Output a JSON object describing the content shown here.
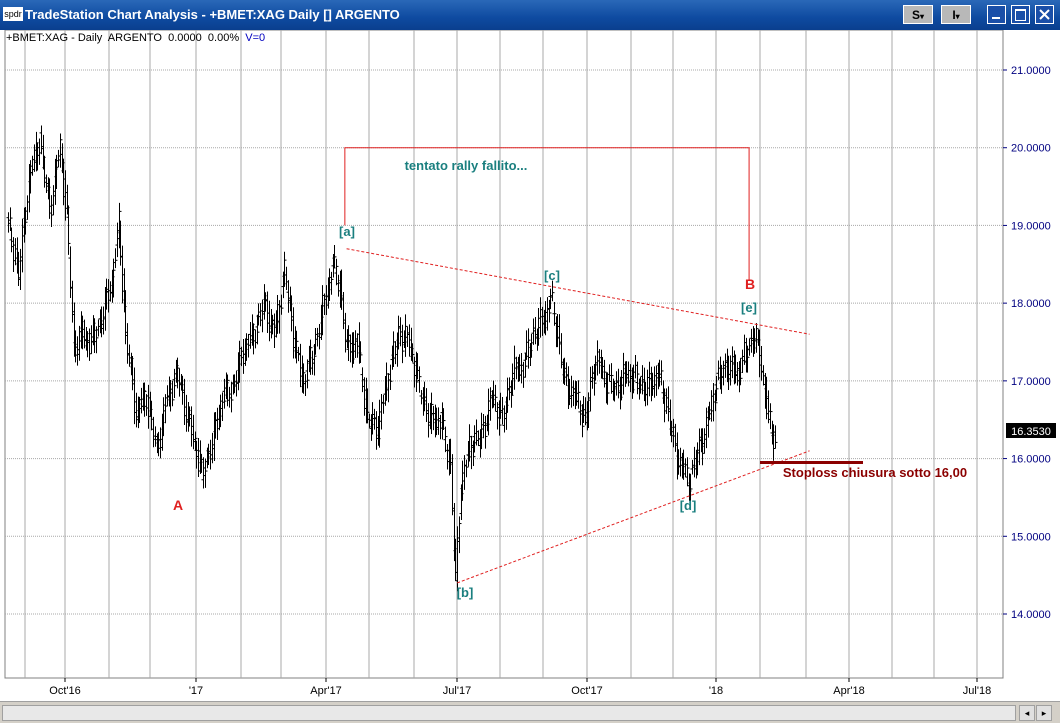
{
  "window": {
    "icon_label": "spdr",
    "title": "TradeStation Chart Analysis - +BMET:XAG Daily [] ARGENTO",
    "buttons": {
      "s_label": "S",
      "i_label": "I"
    }
  },
  "info_line": {
    "symbol": "+BMET:XAG - Daily",
    "name": "ARGENTO",
    "change": "0.0000",
    "pct": "0.00%",
    "volume": "V=0"
  },
  "last_price": "16.3530",
  "colors": {
    "label_teal": "#1a7f7f",
    "annotation_red": "#e02020",
    "stoploss": "#8b0000",
    "axis_blue": "#000080"
  },
  "chart_data": {
    "type": "ohlc",
    "ylim": [
      13.2,
      21.4
    ],
    "y_ticks": [
      "14.0000",
      "15.0000",
      "16.0000",
      "17.0000",
      "18.0000",
      "19.0000",
      "20.0000",
      "21.0000"
    ],
    "x_ticks": [
      "Oct'16",
      "'17",
      "Apr'17",
      "Jul'17",
      "Oct'17",
      "'18",
      "Apr'18",
      "Jul'18"
    ],
    "annotations": {
      "wave_a": "A",
      "wave_b": "B",
      "wave_sub_a": "[a]",
      "wave_sub_b": "[b]",
      "wave_sub_c": "[c]",
      "wave_sub_d": "[d]",
      "wave_sub_e": "[e]",
      "rally_note": "tentato rally fallito...",
      "stoploss_note": "Stoploss chiusura sotto 16,00"
    },
    "anchors": [
      [
        0,
        19.0
      ],
      [
        6,
        18.4
      ],
      [
        12,
        19.6
      ],
      [
        18,
        20.1
      ],
      [
        24,
        19.2
      ],
      [
        30,
        20.0
      ],
      [
        34,
        19.1
      ],
      [
        38,
        17.4
      ],
      [
        42,
        17.6
      ],
      [
        48,
        17.5
      ],
      [
        54,
        17.8
      ],
      [
        60,
        18.3
      ],
      [
        64,
        19.0
      ],
      [
        68,
        17.6
      ],
      [
        74,
        16.6
      ],
      [
        80,
        16.8
      ],
      [
        86,
        16.1
      ],
      [
        92,
        16.8
      ],
      [
        98,
        17.1
      ],
      [
        104,
        16.5
      ],
      [
        108,
        16.2
      ],
      [
        112,
        15.8
      ],
      [
        118,
        16.2
      ],
      [
        124,
        16.8
      ],
      [
        130,
        16.9
      ],
      [
        136,
        17.4
      ],
      [
        142,
        17.6
      ],
      [
        148,
        18.0
      ],
      [
        154,
        17.6
      ],
      [
        160,
        18.4
      ],
      [
        165,
        17.6
      ],
      [
        170,
        17.0
      ],
      [
        176,
        17.3
      ],
      [
        182,
        17.9
      ],
      [
        188,
        18.5
      ],
      [
        192,
        18.2
      ],
      [
        196,
        17.4
      ],
      [
        202,
        17.5
      ],
      [
        208,
        16.5
      ],
      [
        214,
        16.4
      ],
      [
        220,
        17.1
      ],
      [
        226,
        17.6
      ],
      [
        232,
        17.5
      ],
      [
        238,
        16.9
      ],
      [
        244,
        16.5
      ],
      [
        250,
        16.5
      ],
      [
        256,
        15.9
      ],
      [
        259,
        14.4
      ],
      [
        262,
        15.7
      ],
      [
        268,
        16.2
      ],
      [
        274,
        16.3
      ],
      [
        280,
        16.8
      ],
      [
        286,
        16.5
      ],
      [
        292,
        17.1
      ],
      [
        298,
        17.2
      ],
      [
        304,
        17.6
      ],
      [
        310,
        17.8
      ],
      [
        314,
        18.05
      ],
      [
        318,
        17.6
      ],
      [
        322,
        17.0
      ],
      [
        328,
        16.8
      ],
      [
        334,
        16.5
      ],
      [
        340,
        17.3
      ],
      [
        346,
        17.0
      ],
      [
        352,
        16.9
      ],
      [
        358,
        17.1
      ],
      [
        364,
        17.0
      ],
      [
        370,
        16.9
      ],
      [
        376,
        17.1
      ],
      [
        382,
        16.6
      ],
      [
        386,
        16.1
      ],
      [
        390,
        15.9
      ],
      [
        394,
        15.7
      ],
      [
        398,
        16.0
      ],
      [
        404,
        16.4
      ],
      [
        410,
        17.0
      ],
      [
        416,
        17.2
      ],
      [
        422,
        17.1
      ],
      [
        428,
        17.4
      ],
      [
        432,
        17.6
      ],
      [
        436,
        17.2
      ],
      [
        440,
        16.5
      ],
      [
        444,
        16.2
      ]
    ],
    "trendlines": [
      {
        "name": "upper",
        "from": [
          196,
          18.7
        ],
        "to": [
          464,
          17.6
        ]
      },
      {
        "name": "lower",
        "from": [
          260,
          14.4
        ],
        "to": [
          464,
          16.1
        ]
      }
    ],
    "rally_bracket": {
      "from": [
        195,
        20.0
      ],
      "to": [
        429,
        20.0
      ],
      "left_down_to": 19.0,
      "right_down_to": 18.3
    },
    "stoploss_level": 15.95
  }
}
